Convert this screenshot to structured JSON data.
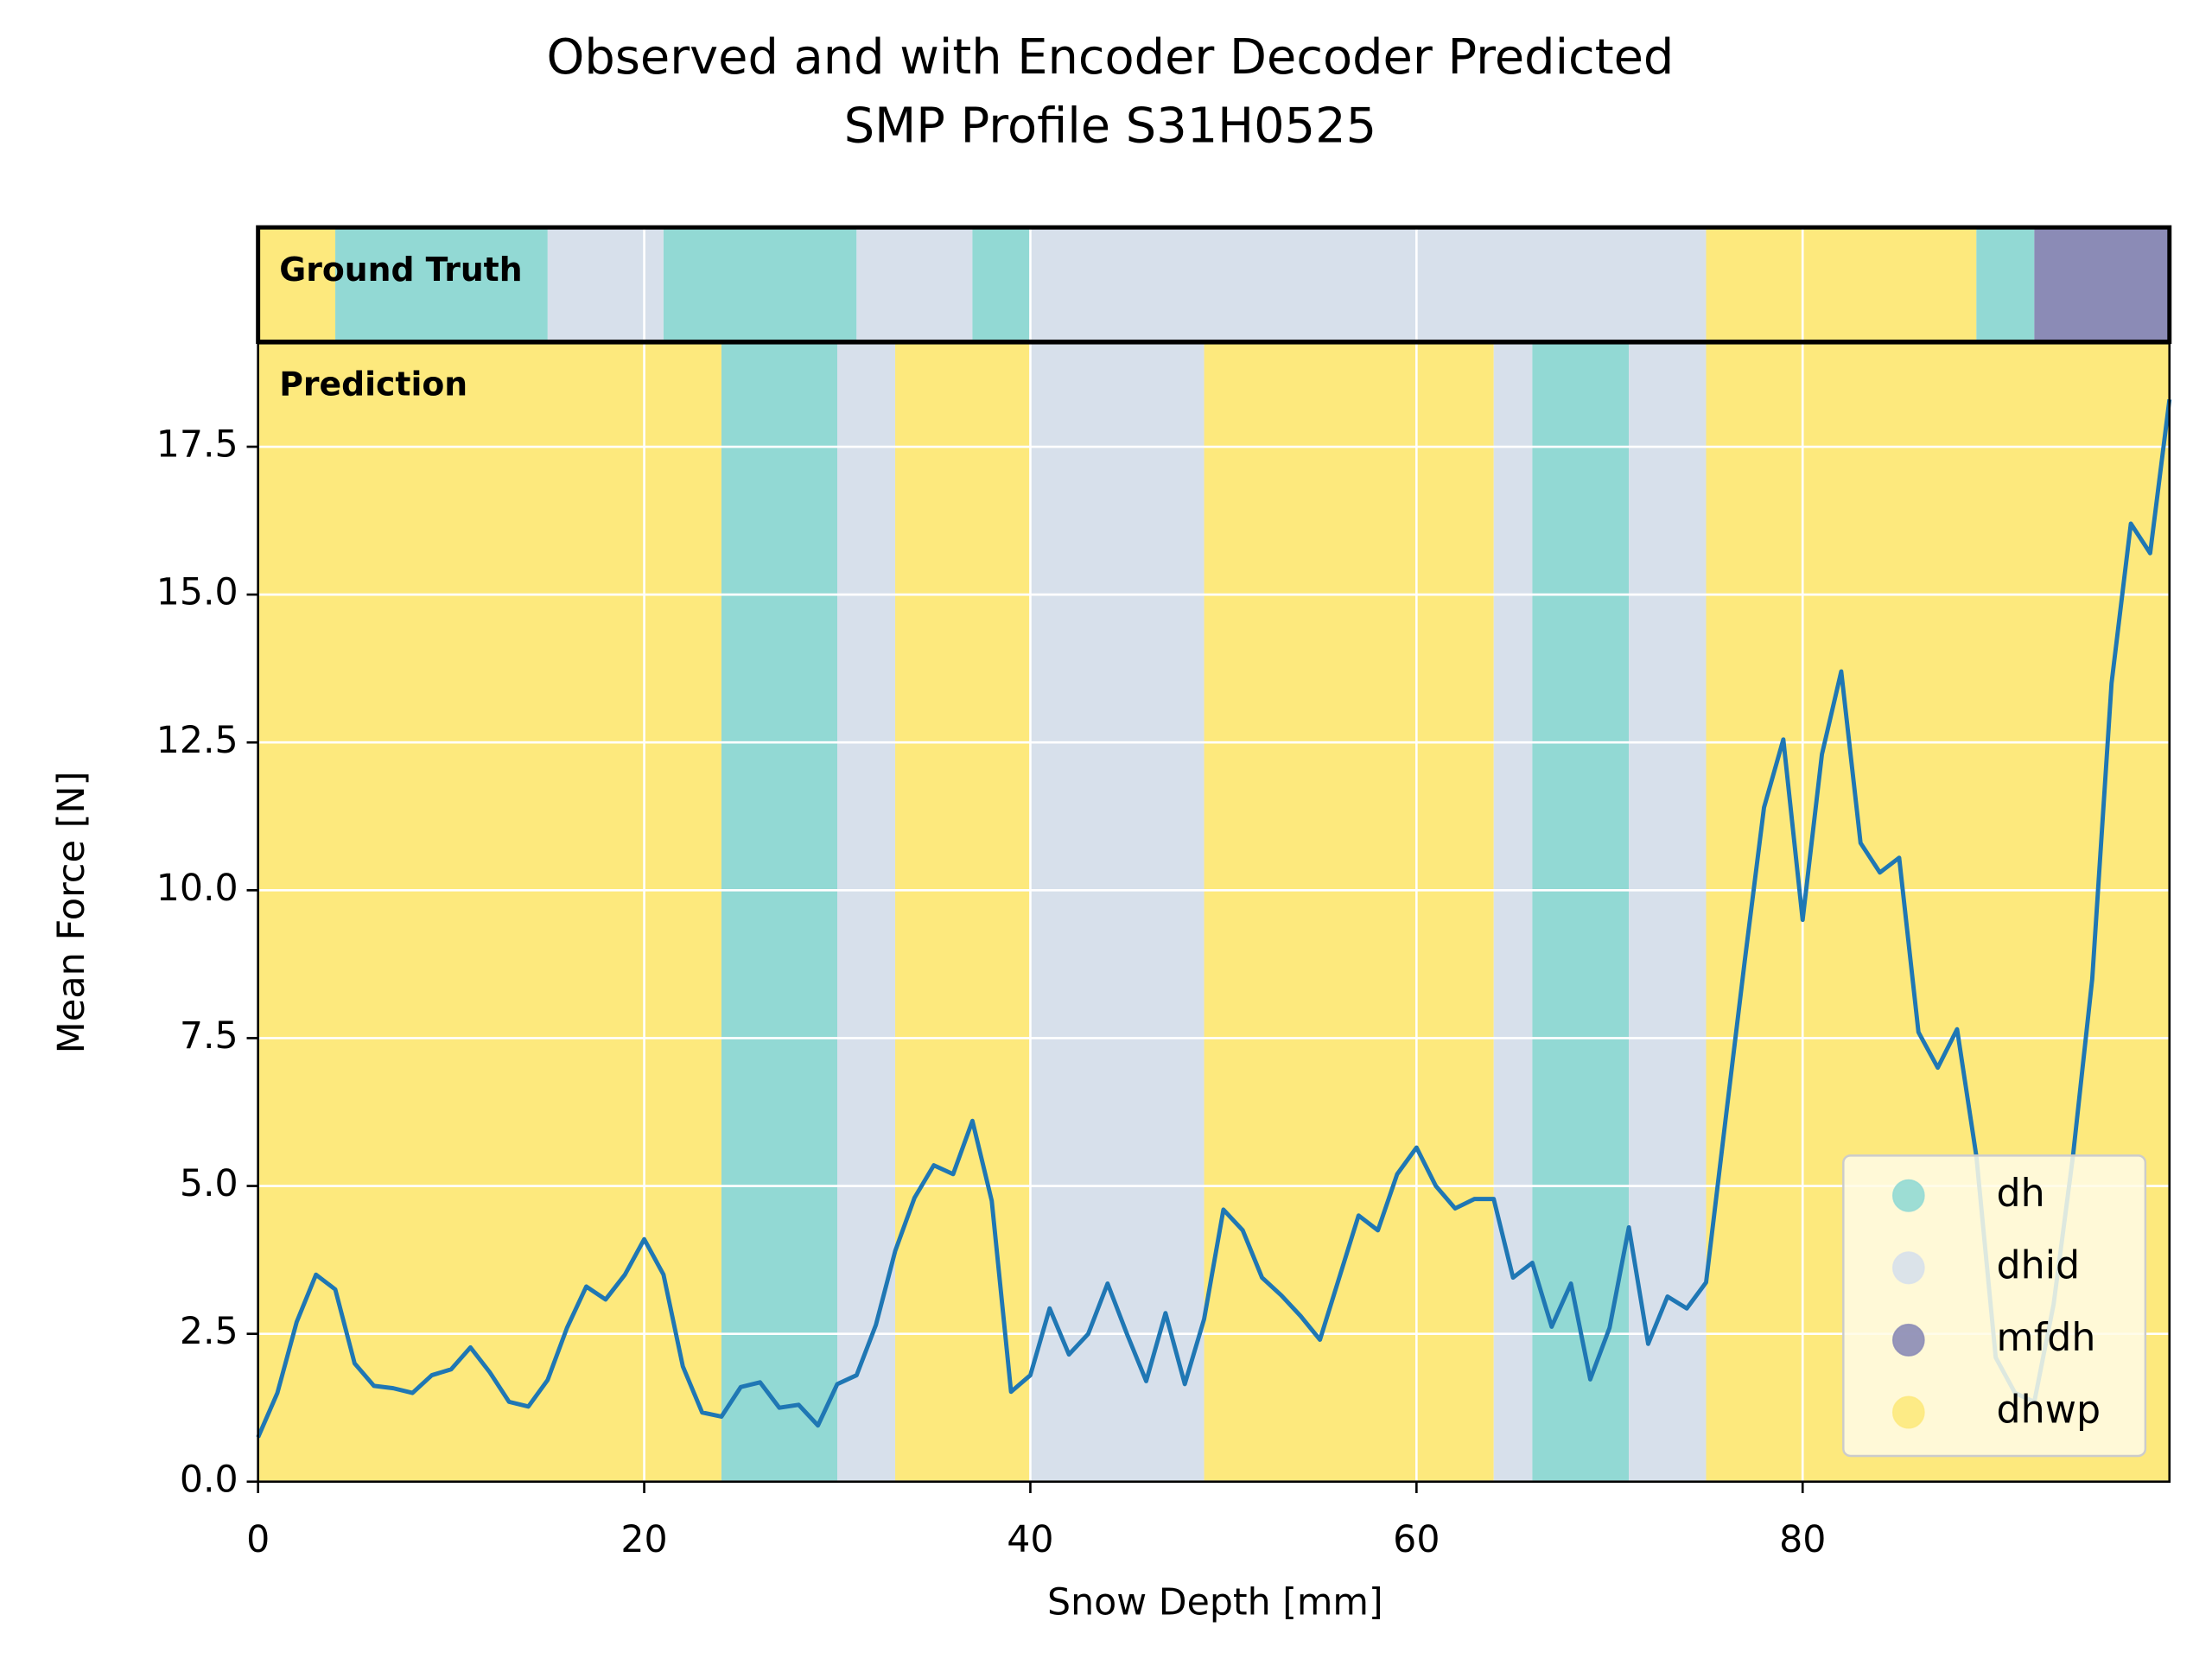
{
  "chart_data": {
    "type": "line",
    "title": "Observed and with Encoder Decoder Predicted",
    "subtitle": "SMP Profile S31H0525",
    "xlabel": "Snow Depth [mm]",
    "ylabel": "Mean Force [N]",
    "xlim": [
      0,
      99
    ],
    "ylim": [
      0,
      19.25
    ],
    "xticks": [
      0,
      20,
      40,
      60,
      80
    ],
    "yticks": [
      {
        "value": 0,
        "label": "0.0"
      },
      {
        "value": 2.5,
        "label": "2.5"
      },
      {
        "value": 5,
        "label": "5.0"
      },
      {
        "value": 7.5,
        "label": "7.5"
      },
      {
        "value": 10,
        "label": "10.0"
      },
      {
        "value": 12.5,
        "label": "12.5"
      },
      {
        "value": 15,
        "label": "15.0"
      },
      {
        "value": 17.5,
        "label": "17.5"
      }
    ],
    "grid": true,
    "legend": "lower right",
    "classes": [
      {
        "name": "dh",
        "color": "#92d9d4"
      },
      {
        "name": "dhid",
        "color": "#d7e0eb"
      },
      {
        "name": "mfdh",
        "color": "#8b8bb6"
      },
      {
        "name": "dhwp",
        "color": "#fde97d"
      }
    ],
    "bands": [
      {
        "label": "Ground Truth",
        "segments": [
          {
            "class": 3,
            "start": 0,
            "end": 4
          },
          {
            "class": 0,
            "start": 4,
            "end": 15
          },
          {
            "class": 1,
            "start": 15,
            "end": 21
          },
          {
            "class": 0,
            "start": 21,
            "end": 31
          },
          {
            "class": 1,
            "start": 31,
            "end": 37
          },
          {
            "class": 0,
            "start": 37,
            "end": 40
          },
          {
            "class": 1,
            "start": 40,
            "end": 75
          },
          {
            "class": 3,
            "start": 75,
            "end": 89
          },
          {
            "class": 0,
            "start": 89,
            "end": 92
          },
          {
            "class": 2,
            "start": 92,
            "end": 99
          }
        ]
      },
      {
        "label": "Prediction",
        "segments": [
          {
            "class": 3,
            "start": 0,
            "end": 24
          },
          {
            "class": 0,
            "start": 24,
            "end": 30
          },
          {
            "class": 1,
            "start": 30,
            "end": 33
          },
          {
            "class": 3,
            "start": 33,
            "end": 40
          },
          {
            "class": 1,
            "start": 40,
            "end": 49
          },
          {
            "class": 3,
            "start": 49,
            "end": 64
          },
          {
            "class": 1,
            "start": 64,
            "end": 66
          },
          {
            "class": 0,
            "start": 66,
            "end": 71
          },
          {
            "class": 1,
            "start": 71,
            "end": 75
          },
          {
            "class": 3,
            "start": 75,
            "end": 99
          }
        ]
      }
    ],
    "x": [
      0,
      1,
      2,
      3,
      4,
      5,
      6,
      7,
      8,
      9,
      10,
      11,
      12,
      13,
      14,
      15,
      16,
      17,
      18,
      19,
      20,
      21,
      22,
      23,
      24,
      25,
      26,
      27,
      28,
      29,
      30,
      31,
      32,
      33,
      34,
      35,
      36,
      37,
      38,
      39,
      40,
      41,
      42,
      43,
      44,
      45,
      46,
      47,
      48,
      49,
      50,
      51,
      52,
      53,
      54,
      55,
      56,
      57,
      58,
      59,
      60,
      61,
      62,
      63,
      64,
      65,
      66,
      67,
      68,
      69,
      70,
      71,
      72,
      73,
      74,
      75,
      76,
      77,
      78,
      79,
      80,
      81,
      82,
      83,
      84,
      85,
      86,
      87,
      88,
      89,
      90,
      91,
      92,
      93,
      94,
      95,
      96,
      97,
      98,
      99
    ],
    "series": [
      {
        "color": "#1f77b4",
        "values": [
          0.75,
          1.5,
          2.7,
          3.5,
          3.25,
          2.0,
          1.62,
          1.58,
          1.5,
          1.8,
          1.9,
          2.27,
          1.85,
          1.35,
          1.27,
          1.72,
          2.6,
          3.3,
          3.08,
          3.5,
          4.1,
          3.5,
          1.95,
          1.17,
          1.1,
          1.6,
          1.68,
          1.25,
          1.3,
          0.95,
          1.65,
          1.8,
          2.65,
          3.9,
          4.8,
          5.35,
          5.2,
          6.1,
          4.75,
          1.52,
          1.8,
          2.93,
          2.15,
          2.5,
          3.35,
          2.5,
          1.7,
          2.85,
          1.65,
          2.75,
          4.6,
          4.25,
          3.45,
          3.15,
          2.8,
          2.4,
          3.45,
          4.5,
          4.25,
          5.2,
          5.65,
          5.0,
          4.62,
          4.78,
          4.78,
          3.45,
          3.7,
          2.62,
          3.35,
          1.73,
          2.6,
          4.3,
          2.33,
          3.13,
          2.93,
          3.37,
          6.1,
          8.8,
          11.4,
          12.55,
          9.5,
          12.3,
          13.7,
          10.8,
          10.3,
          10.55,
          7.6,
          7.0,
          7.65,
          5.5,
          2.1,
          1.5,
          1.35,
          3.0,
          5.5,
          8.5,
          13.5,
          16.2,
          15.7,
          18.3
        ]
      }
    ]
  }
}
